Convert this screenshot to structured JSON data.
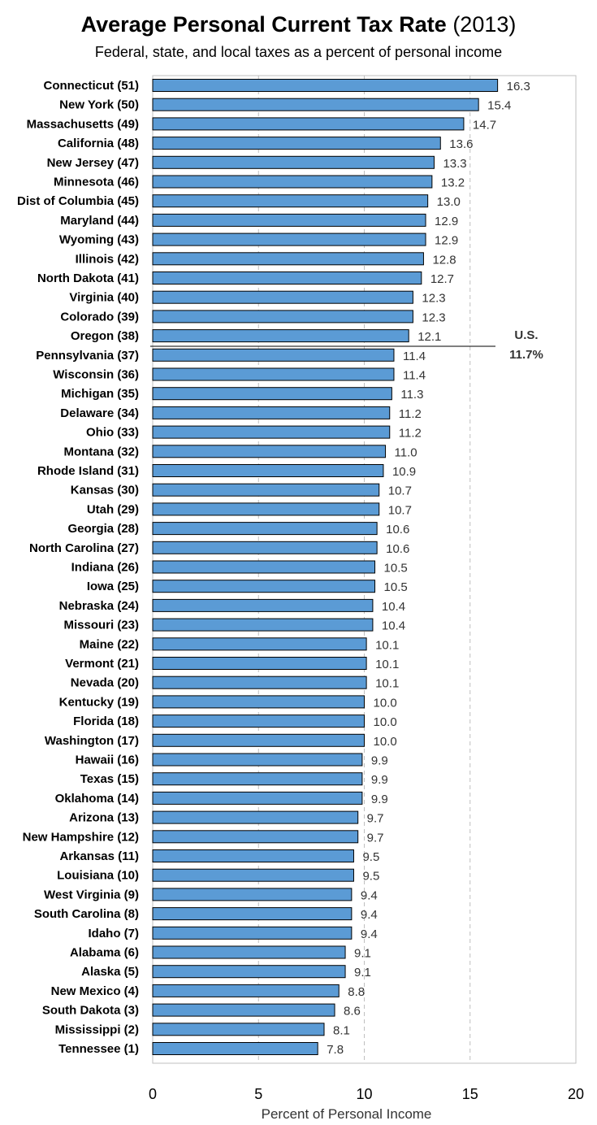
{
  "chart_data": {
    "type": "bar",
    "orientation": "horizontal",
    "title": "Average Personal Current Tax Rate",
    "title_suffix": "(2013)",
    "subtitle": "Federal, state, and local taxes as a percent of personal income",
    "xlabel": "Percent of Personal Income",
    "ylabel": "",
    "xlim": [
      0,
      20
    ],
    "xticks": [
      0,
      5,
      10,
      15,
      20
    ],
    "grid": "vertical dashed",
    "bar_color": "#5b9bd5",
    "reference_line": {
      "value": 11.7,
      "label_top": "U.S.",
      "label_bottom": "11.7%"
    },
    "categories": [
      "Connecticut (51)",
      "New York (50)",
      "Massachusetts (49)",
      "California (48)",
      "New Jersey (47)",
      "Minnesota (46)",
      "Dist of Columbia (45)",
      "Maryland (44)",
      "Wyoming (43)",
      "Illinois (42)",
      "North Dakota (41)",
      "Virginia (40)",
      "Colorado (39)",
      "Oregon (38)",
      "Pennsylvania (37)",
      "Wisconsin (36)",
      "Michigan (35)",
      "Delaware (34)",
      "Ohio (33)",
      "Montana (32)",
      "Rhode Island (31)",
      "Kansas (30)",
      "Utah (29)",
      "Georgia (28)",
      "North Carolina (27)",
      "Indiana (26)",
      "Iowa (25)",
      "Nebraska (24)",
      "Missouri (23)",
      "Maine (22)",
      "Vermont (21)",
      "Nevada (20)",
      "Kentucky (19)",
      "Florida (18)",
      "Washington (17)",
      "Hawaii (16)",
      "Texas (15)",
      "Oklahoma (14)",
      "Arizona (13)",
      "New Hampshire (12)",
      "Arkansas (11)",
      "Louisiana (10)",
      "West Virginia (9)",
      "South Carolina (8)",
      "Idaho (7)",
      "Alabama (6)",
      "Alaska (5)",
      "New Mexico (4)",
      "South Dakota (3)",
      "Mississippi (2)",
      "Tennessee (1)"
    ],
    "values": [
      16.3,
      15.4,
      14.7,
      13.6,
      13.3,
      13.2,
      13.0,
      12.9,
      12.9,
      12.8,
      12.7,
      12.3,
      12.3,
      12.1,
      11.4,
      11.4,
      11.3,
      11.2,
      11.2,
      11.0,
      10.9,
      10.7,
      10.7,
      10.6,
      10.6,
      10.5,
      10.5,
      10.4,
      10.4,
      10.1,
      10.1,
      10.1,
      10.0,
      10.0,
      10.0,
      9.9,
      9.9,
      9.9,
      9.7,
      9.7,
      9.5,
      9.5,
      9.4,
      9.4,
      9.4,
      9.1,
      9.1,
      8.8,
      8.6,
      8.1,
      7.8
    ]
  }
}
